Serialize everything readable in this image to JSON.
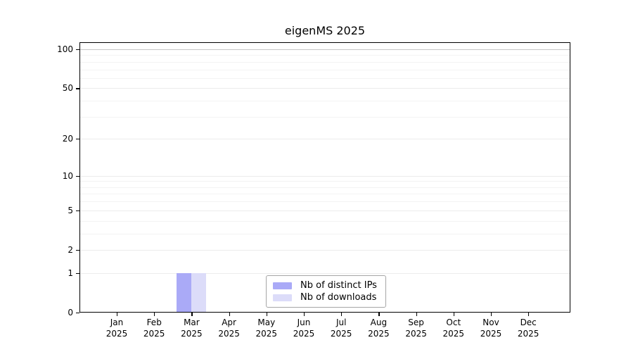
{
  "title": "eigenMS 2025",
  "chart_data": {
    "type": "bar",
    "title": "eigenMS 2025",
    "categories": [
      {
        "label": "Jan",
        "sublabel": "2025"
      },
      {
        "label": "Feb",
        "sublabel": "2025"
      },
      {
        "label": "Mar",
        "sublabel": "2025"
      },
      {
        "label": "Apr",
        "sublabel": "2025"
      },
      {
        "label": "May",
        "sublabel": "2025"
      },
      {
        "label": "Jun",
        "sublabel": "2025"
      },
      {
        "label": "Jul",
        "sublabel": "2025"
      },
      {
        "label": "Aug",
        "sublabel": "2025"
      },
      {
        "label": "Sep",
        "sublabel": "2025"
      },
      {
        "label": "Oct",
        "sublabel": "2025"
      },
      {
        "label": "Nov",
        "sublabel": "2025"
      },
      {
        "label": "Dec",
        "sublabel": "2025"
      }
    ],
    "series": [
      {
        "name": "Nb of distinct IPs",
        "color": "#aaaaf7",
        "values": [
          0,
          0,
          1,
          0,
          0,
          0,
          0,
          0,
          0,
          0,
          0,
          0
        ]
      },
      {
        "name": "Nb of downloads",
        "color": "#dcdcf9",
        "values": [
          0,
          0,
          1,
          0,
          0,
          0,
          0,
          0,
          0,
          0,
          0,
          0
        ]
      }
    ],
    "xlabel": "",
    "ylabel": "",
    "yscale": "log1p",
    "ylim": [
      0,
      100
    ],
    "yticks": [
      0,
      1,
      2,
      5,
      10,
      20,
      50,
      100
    ],
    "yticks_minor": [
      3,
      4,
      6,
      7,
      8,
      9,
      30,
      40,
      60,
      70,
      80,
      90
    ],
    "grid": true,
    "legend_position": "bottom-center"
  }
}
